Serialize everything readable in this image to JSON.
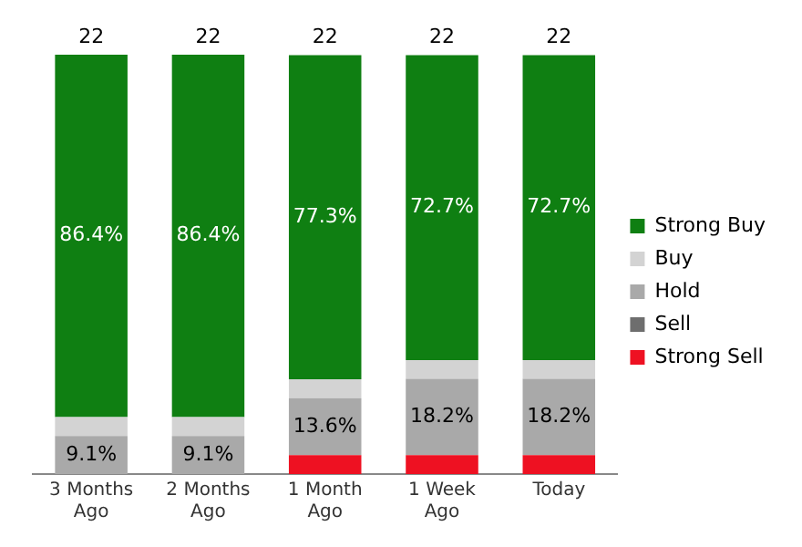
{
  "chart_data": {
    "type": "bar",
    "stacked": true,
    "categories": [
      "3 Months Ago",
      "2 Months Ago",
      "1 Month Ago",
      "1 Week Ago",
      "Today"
    ],
    "ylim": [
      0,
      100
    ],
    "tick_labels": "x",
    "grid": false,
    "legend": "right",
    "series": [
      {
        "name": "Strong Sell",
        "color": "#ee1122",
        "values": [
          0,
          0,
          4.5,
          4.5,
          4.5
        ],
        "value_labels": [
          null,
          null,
          null,
          null,
          null
        ]
      },
      {
        "name": "Sell",
        "color": "#6e6e6e",
        "values": [
          0,
          0,
          0,
          0,
          0
        ],
        "value_labels": [
          null,
          null,
          null,
          null,
          null
        ]
      },
      {
        "name": "Hold",
        "color": "#a9a9a9",
        "values": [
          9.1,
          9.1,
          13.6,
          18.2,
          18.2
        ],
        "value_labels": [
          "9.1%",
          "9.1%",
          "13.6%",
          "18.2%",
          "18.2%"
        ]
      },
      {
        "name": "Buy",
        "color": "#d3d3d3",
        "values": [
          4.5,
          4.5,
          4.5,
          4.5,
          4.5
        ],
        "value_labels": [
          null,
          null,
          null,
          null,
          null
        ]
      },
      {
        "name": "Strong Buy",
        "color": "#0f7f12",
        "values": [
          86.4,
          86.4,
          77.3,
          72.7,
          72.7
        ],
        "value_labels": [
          "86.4%",
          "86.4%",
          "77.3%",
          "72.7%",
          "72.7%"
        ]
      }
    ],
    "annotations": [
      {
        "text": "22",
        "x": "3 Months Ago",
        "y": 100
      },
      {
        "text": "22",
        "x": "2 Months Ago",
        "y": 100
      },
      {
        "text": "22",
        "x": "1 Month Ago",
        "y": 100
      },
      {
        "text": "22",
        "x": "1 Week Ago",
        "y": 100
      },
      {
        "text": "22",
        "x": "Today",
        "y": 100
      }
    ]
  }
}
